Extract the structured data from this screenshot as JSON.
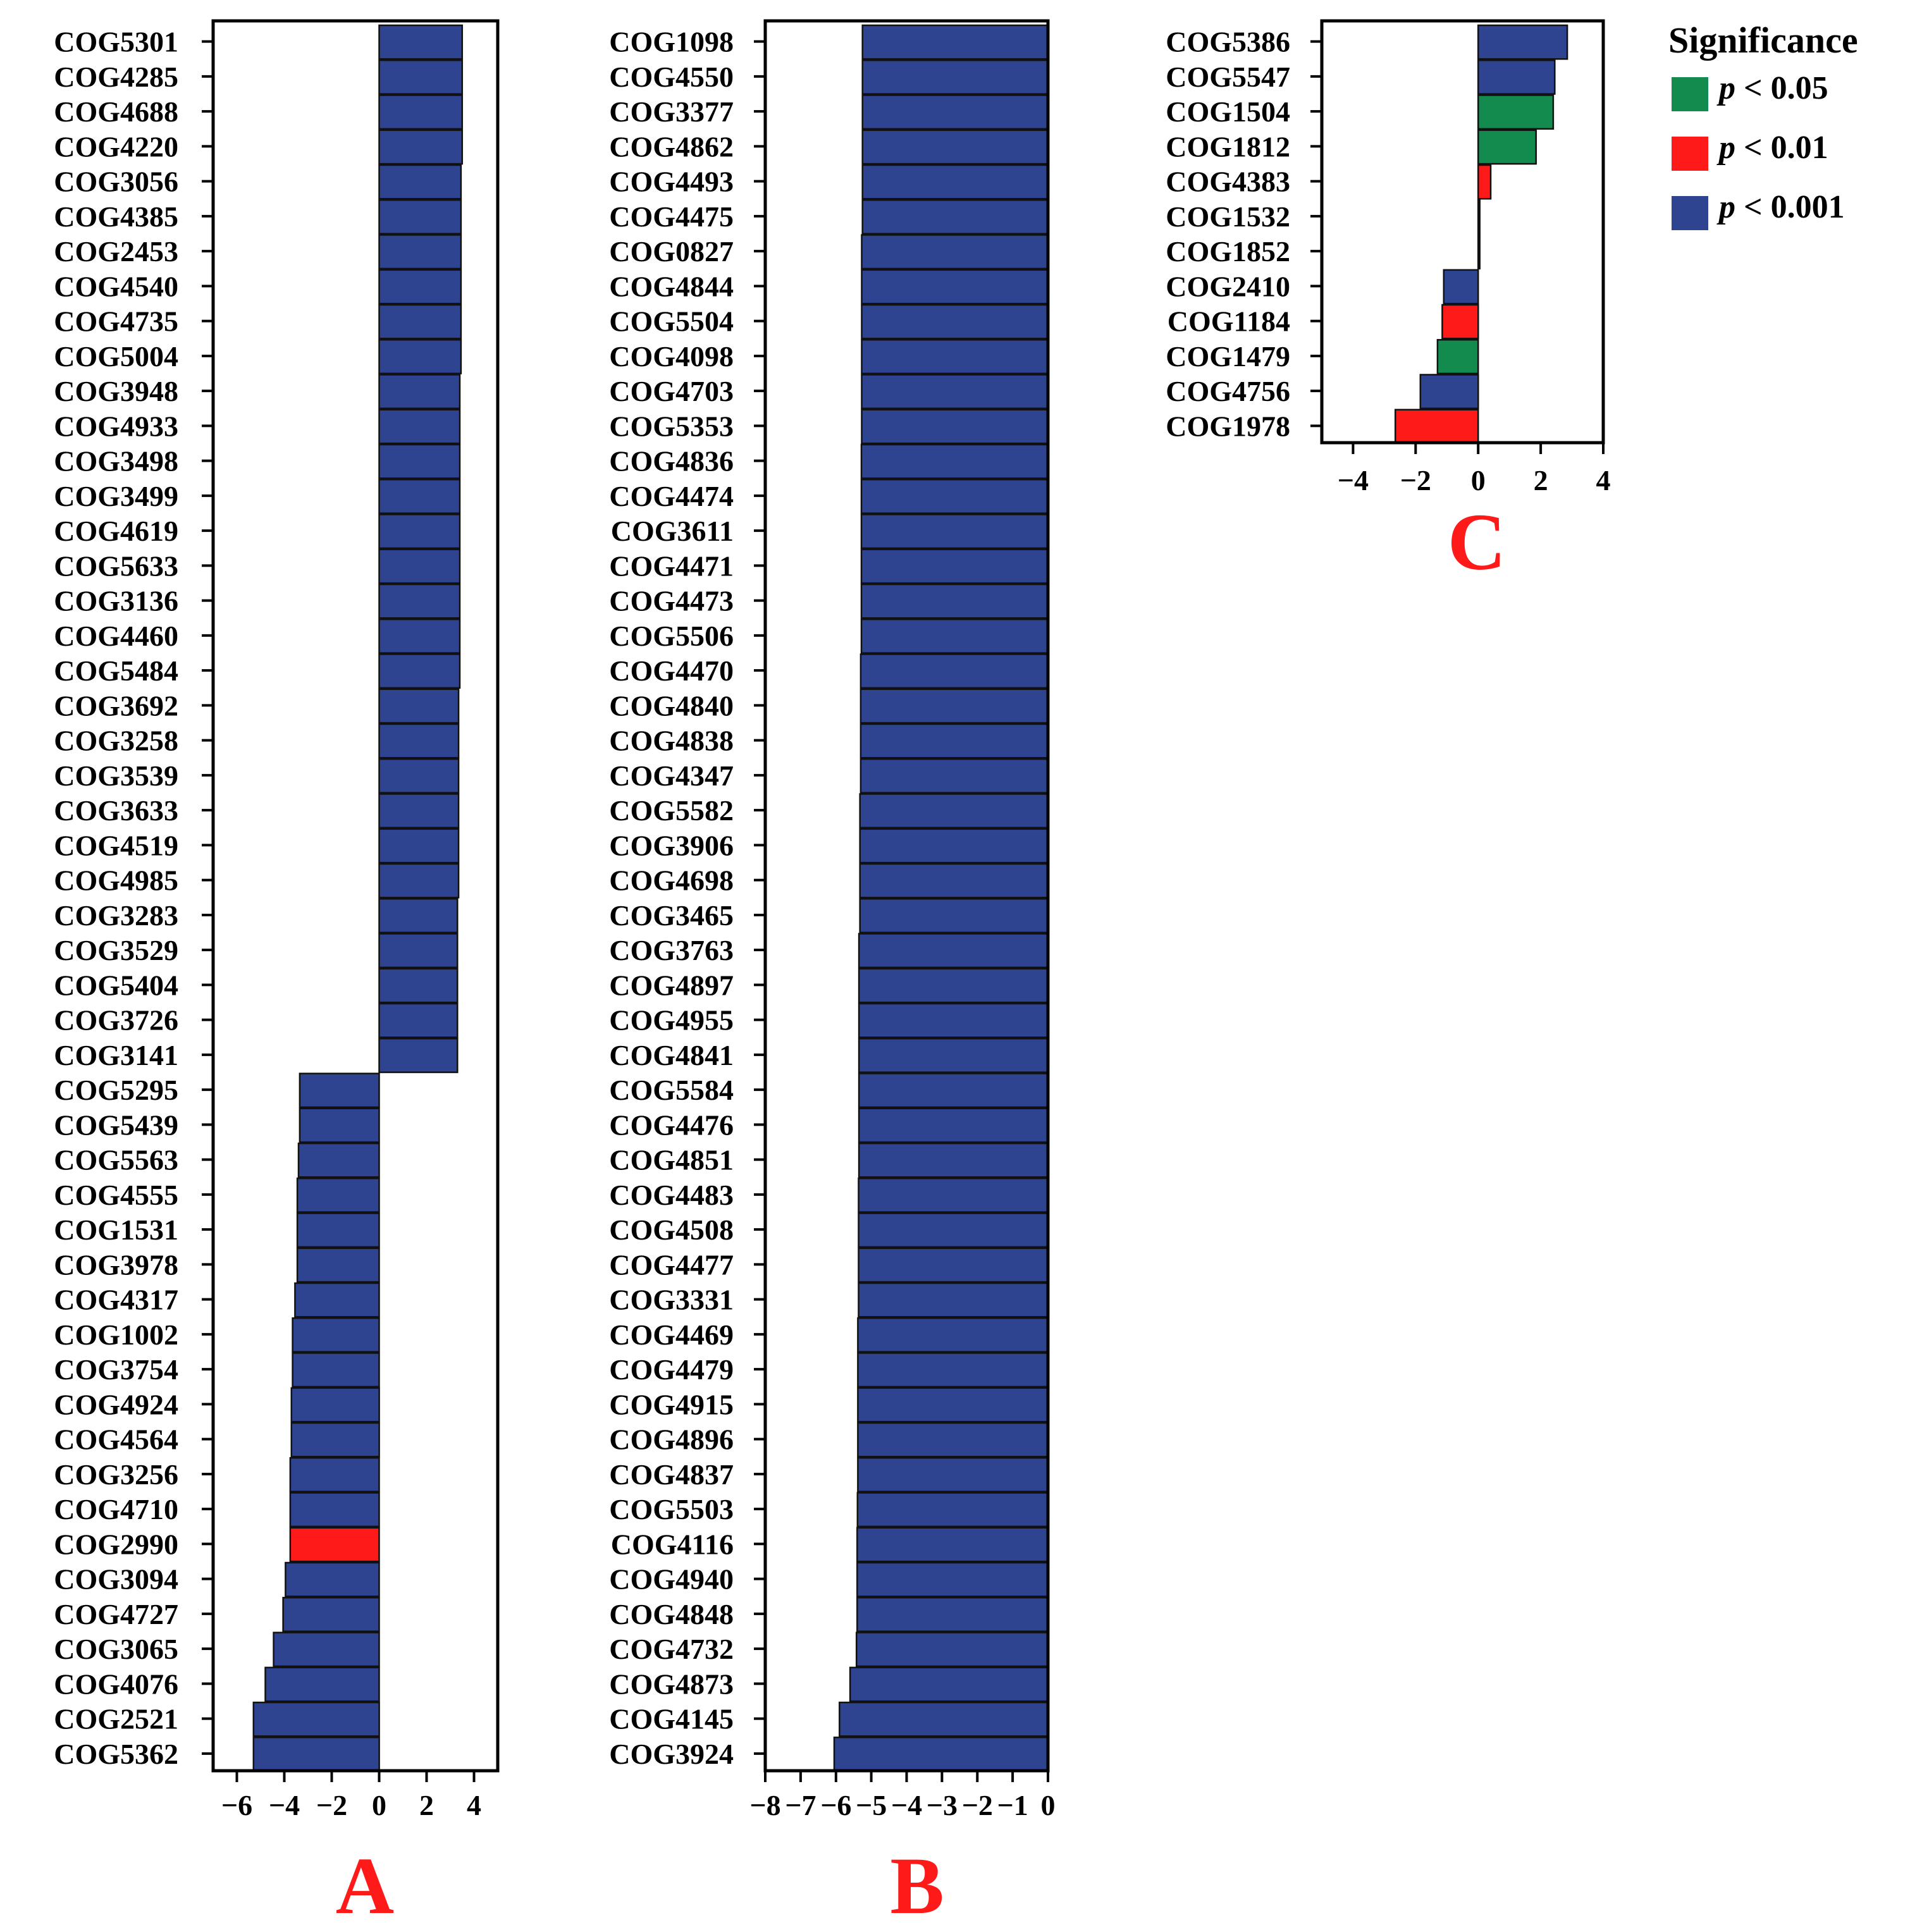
{
  "colors": {
    "p_lt_0.05": "#138A4E",
    "p_lt_0.01": "#FF1A1A",
    "p_lt_0.001": "#2E4490"
  },
  "legend": {
    "title": "Significance",
    "entries": [
      {
        "key": "p_lt_0.05",
        "p": "p",
        "text": " < 0.05"
      },
      {
        "key": "p_lt_0.01",
        "p": "p",
        "text": " < 0.01"
      },
      {
        "key": "p_lt_0.001",
        "p": "p",
        "text": " < 0.001"
      }
    ]
  },
  "chart_data": [
    {
      "type": "bar",
      "orientation": "horizontal",
      "panel_label": "A",
      "xlim": [
        -7,
        5
      ],
      "xticks": [
        -6,
        -4,
        -2,
        0,
        2,
        4
      ],
      "xtick_labels": [
        "−6",
        "−4",
        "−2",
        "0",
        "2",
        "4"
      ],
      "categories": [
        "COG5301",
        "COG4285",
        "COG4688",
        "COG4220",
        "COG3056",
        "COG4385",
        "COG2453",
        "COG4540",
        "COG4735",
        "COG5004",
        "COG3948",
        "COG4933",
        "COG3498",
        "COG3499",
        "COG4619",
        "COG5633",
        "COG3136",
        "COG4460",
        "COG5484",
        "COG3692",
        "COG3258",
        "COG3539",
        "COG3633",
        "COG4519",
        "COG4985",
        "COG3283",
        "COG3529",
        "COG5404",
        "COG3726",
        "COG3141",
        "COG5295",
        "COG5439",
        "COG5563",
        "COG4555",
        "COG1531",
        "COG3978",
        "COG4317",
        "COG1002",
        "COG3754",
        "COG4924",
        "COG4564",
        "COG3256",
        "COG4710",
        "COG2990",
        "COG3094",
        "COG4727",
        "COG3065",
        "COG4076",
        "COG2521",
        "COG5362"
      ],
      "values": [
        3.5,
        3.5,
        3.5,
        3.5,
        3.45,
        3.45,
        3.45,
        3.45,
        3.45,
        3.45,
        3.4,
        3.4,
        3.4,
        3.4,
        3.4,
        3.4,
        3.4,
        3.4,
        3.4,
        3.35,
        3.35,
        3.35,
        3.35,
        3.35,
        3.35,
        3.3,
        3.3,
        3.3,
        3.3,
        3.3,
        -3.35,
        -3.35,
        -3.4,
        -3.45,
        -3.45,
        -3.45,
        -3.55,
        -3.65,
        -3.65,
        -3.7,
        -3.7,
        -3.75,
        -3.75,
        -3.75,
        -3.95,
        -4.05,
        -4.45,
        -4.8,
        -5.3,
        -5.3
      ],
      "significance": [
        "p_lt_0.001",
        "p_lt_0.001",
        "p_lt_0.001",
        "p_lt_0.001",
        "p_lt_0.001",
        "p_lt_0.001",
        "p_lt_0.001",
        "p_lt_0.001",
        "p_lt_0.001",
        "p_lt_0.001",
        "p_lt_0.001",
        "p_lt_0.001",
        "p_lt_0.001",
        "p_lt_0.001",
        "p_lt_0.001",
        "p_lt_0.001",
        "p_lt_0.001",
        "p_lt_0.001",
        "p_lt_0.001",
        "p_lt_0.001",
        "p_lt_0.001",
        "p_lt_0.001",
        "p_lt_0.001",
        "p_lt_0.001",
        "p_lt_0.001",
        "p_lt_0.001",
        "p_lt_0.001",
        "p_lt_0.001",
        "p_lt_0.001",
        "p_lt_0.001",
        "p_lt_0.001",
        "p_lt_0.001",
        "p_lt_0.001",
        "p_lt_0.001",
        "p_lt_0.001",
        "p_lt_0.001",
        "p_lt_0.001",
        "p_lt_0.001",
        "p_lt_0.001",
        "p_lt_0.001",
        "p_lt_0.001",
        "p_lt_0.001",
        "p_lt_0.001",
        "p_lt_0.01",
        "p_lt_0.001",
        "p_lt_0.001",
        "p_lt_0.001",
        "p_lt_0.001",
        "p_lt_0.001",
        "p_lt_0.001"
      ]
    },
    {
      "type": "bar",
      "orientation": "horizontal",
      "panel_label": "B",
      "xlim": [
        -8,
        0
      ],
      "xticks": [
        -8,
        -7,
        -6,
        -5,
        -4,
        -3,
        -2,
        -1,
        0
      ],
      "xtick_labels": [
        "−8",
        "−7",
        "−6",
        "−5",
        "−4",
        "−3",
        "−2",
        "−1",
        "0"
      ],
      "categories": [
        "COG1098",
        "COG4550",
        "COG3377",
        "COG4862",
        "COG4493",
        "COG4475",
        "COG0827",
        "COG4844",
        "COG5504",
        "COG4098",
        "COG4703",
        "COG5353",
        "COG4836",
        "COG4474",
        "COG3611",
        "COG4471",
        "COG4473",
        "COG5506",
        "COG4470",
        "COG4840",
        "COG4838",
        "COG4347",
        "COG5582",
        "COG3906",
        "COG4698",
        "COG3465",
        "COG3763",
        "COG4897",
        "COG4955",
        "COG4841",
        "COG5584",
        "COG4476",
        "COG4851",
        "COG4483",
        "COG4508",
        "COG4477",
        "COG3331",
        "COG4469",
        "COG4479",
        "COG4915",
        "COG4896",
        "COG4837",
        "COG5503",
        "COG4116",
        "COG4940",
        "COG4848",
        "COG4732",
        "COG4873",
        "COG4145",
        "COG3924"
      ],
      "values": [
        -5.25,
        -5.25,
        -5.25,
        -5.25,
        -5.25,
        -5.25,
        -5.27,
        -5.27,
        -5.27,
        -5.27,
        -5.27,
        -5.27,
        -5.28,
        -5.28,
        -5.28,
        -5.28,
        -5.28,
        -5.28,
        -5.3,
        -5.3,
        -5.3,
        -5.3,
        -5.32,
        -5.32,
        -5.32,
        -5.32,
        -5.35,
        -5.35,
        -5.35,
        -5.35,
        -5.35,
        -5.35,
        -5.35,
        -5.36,
        -5.36,
        -5.36,
        -5.36,
        -5.38,
        -5.38,
        -5.38,
        -5.38,
        -5.38,
        -5.39,
        -5.4,
        -5.4,
        -5.4,
        -5.42,
        -5.6,
        -5.9,
        -6.05
      ],
      "significance": [
        "p_lt_0.001",
        "p_lt_0.001",
        "p_lt_0.001",
        "p_lt_0.001",
        "p_lt_0.001",
        "p_lt_0.001",
        "p_lt_0.001",
        "p_lt_0.001",
        "p_lt_0.001",
        "p_lt_0.001",
        "p_lt_0.001",
        "p_lt_0.001",
        "p_lt_0.001",
        "p_lt_0.001",
        "p_lt_0.001",
        "p_lt_0.001",
        "p_lt_0.001",
        "p_lt_0.001",
        "p_lt_0.001",
        "p_lt_0.001",
        "p_lt_0.001",
        "p_lt_0.001",
        "p_lt_0.001",
        "p_lt_0.001",
        "p_lt_0.001",
        "p_lt_0.001",
        "p_lt_0.001",
        "p_lt_0.001",
        "p_lt_0.001",
        "p_lt_0.001",
        "p_lt_0.001",
        "p_lt_0.001",
        "p_lt_0.001",
        "p_lt_0.001",
        "p_lt_0.001",
        "p_lt_0.001",
        "p_lt_0.001",
        "p_lt_0.001",
        "p_lt_0.001",
        "p_lt_0.001",
        "p_lt_0.001",
        "p_lt_0.001",
        "p_lt_0.001",
        "p_lt_0.001",
        "p_lt_0.001",
        "p_lt_0.001",
        "p_lt_0.001",
        "p_lt_0.001",
        "p_lt_0.001",
        "p_lt_0.001"
      ]
    },
    {
      "type": "bar",
      "orientation": "horizontal",
      "panel_label": "C",
      "xlim": [
        -5,
        4
      ],
      "xticks": [
        -4,
        -2,
        0,
        2,
        4
      ],
      "xtick_labels": [
        "−4",
        "−2",
        "0",
        "2",
        "4"
      ],
      "categories": [
        "COG5386",
        "COG5547",
        "COG1504",
        "COG1812",
        "COG4383",
        "COG1532",
        "COG1852",
        "COG2410",
        "COG1184",
        "COG1479",
        "COG4756",
        "COG1978"
      ],
      "values": [
        2.85,
        2.45,
        2.4,
        1.85,
        0.4,
        0.05,
        0.05,
        -1.1,
        -1.15,
        -1.3,
        -1.85,
        -2.65
      ],
      "significance": [
        "p_lt_0.001",
        "p_lt_0.001",
        "p_lt_0.05",
        "p_lt_0.05",
        "p_lt_0.01",
        "p_lt_0.001",
        "p_lt_0.001",
        "p_lt_0.001",
        "p_lt_0.01",
        "p_lt_0.05",
        "p_lt_0.001",
        "p_lt_0.01"
      ]
    }
  ]
}
